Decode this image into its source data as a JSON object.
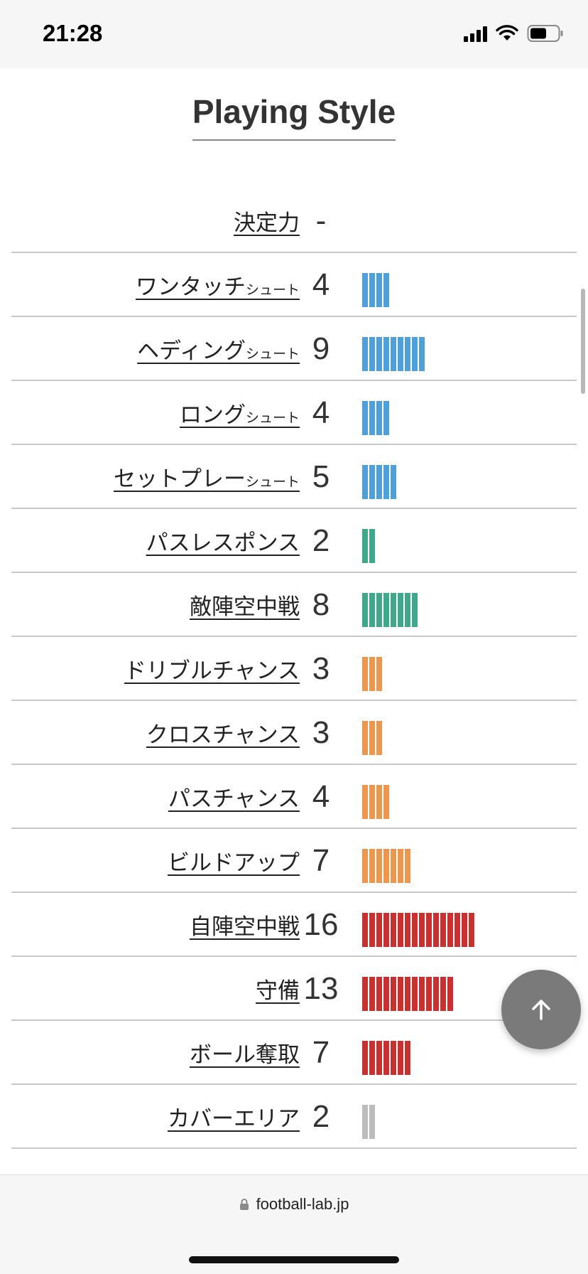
{
  "status": {
    "time": "21:28"
  },
  "page": {
    "title": "Playing Style"
  },
  "url": "football-lab.jp",
  "colors": {
    "shoot": "#4fa0d8",
    "pass": "#3fa88c",
    "chance": "#ec974d",
    "defense": "#c8312f",
    "other": "#bcbcbc"
  },
  "rows": [
    {
      "label": "決定力",
      "sub": "",
      "value": "-",
      "level": 0,
      "category": "shoot"
    },
    {
      "label": "ワンタッチ",
      "sub": "シュート",
      "value": "4",
      "level": 4,
      "category": "shoot"
    },
    {
      "label": "ヘディング",
      "sub": "シュート",
      "value": "9",
      "level": 9,
      "category": "shoot"
    },
    {
      "label": "ロング",
      "sub": "シュート",
      "value": "4",
      "level": 4,
      "category": "shoot"
    },
    {
      "label": "セットプレー",
      "sub": "シュート",
      "value": "5",
      "level": 5,
      "category": "shoot"
    },
    {
      "label": "パスレスポンス",
      "sub": "",
      "value": "2",
      "level": 2,
      "category": "pass"
    },
    {
      "label": "敵陣空中戦",
      "sub": "",
      "value": "8",
      "level": 8,
      "category": "pass"
    },
    {
      "label": "ドリブルチャンス",
      "sub": "",
      "value": "3",
      "level": 3,
      "category": "chance"
    },
    {
      "label": "クロスチャンス",
      "sub": "",
      "value": "3",
      "level": 3,
      "category": "chance"
    },
    {
      "label": "パスチャンス",
      "sub": "",
      "value": "4",
      "level": 4,
      "category": "chance"
    },
    {
      "label": "ビルドアップ",
      "sub": "",
      "value": "7",
      "level": 7,
      "category": "chance"
    },
    {
      "label": "自陣空中戦",
      "sub": "",
      "value": "16",
      "level": 16,
      "category": "defense"
    },
    {
      "label": "守備",
      "sub": "",
      "value": "13",
      "level": 13,
      "category": "defense"
    },
    {
      "label": "ボール奪取",
      "sub": "",
      "value": "7",
      "level": 7,
      "category": "defense"
    },
    {
      "label": "カバーエリア",
      "sub": "",
      "value": "2",
      "level": 2,
      "category": "other"
    }
  ]
}
